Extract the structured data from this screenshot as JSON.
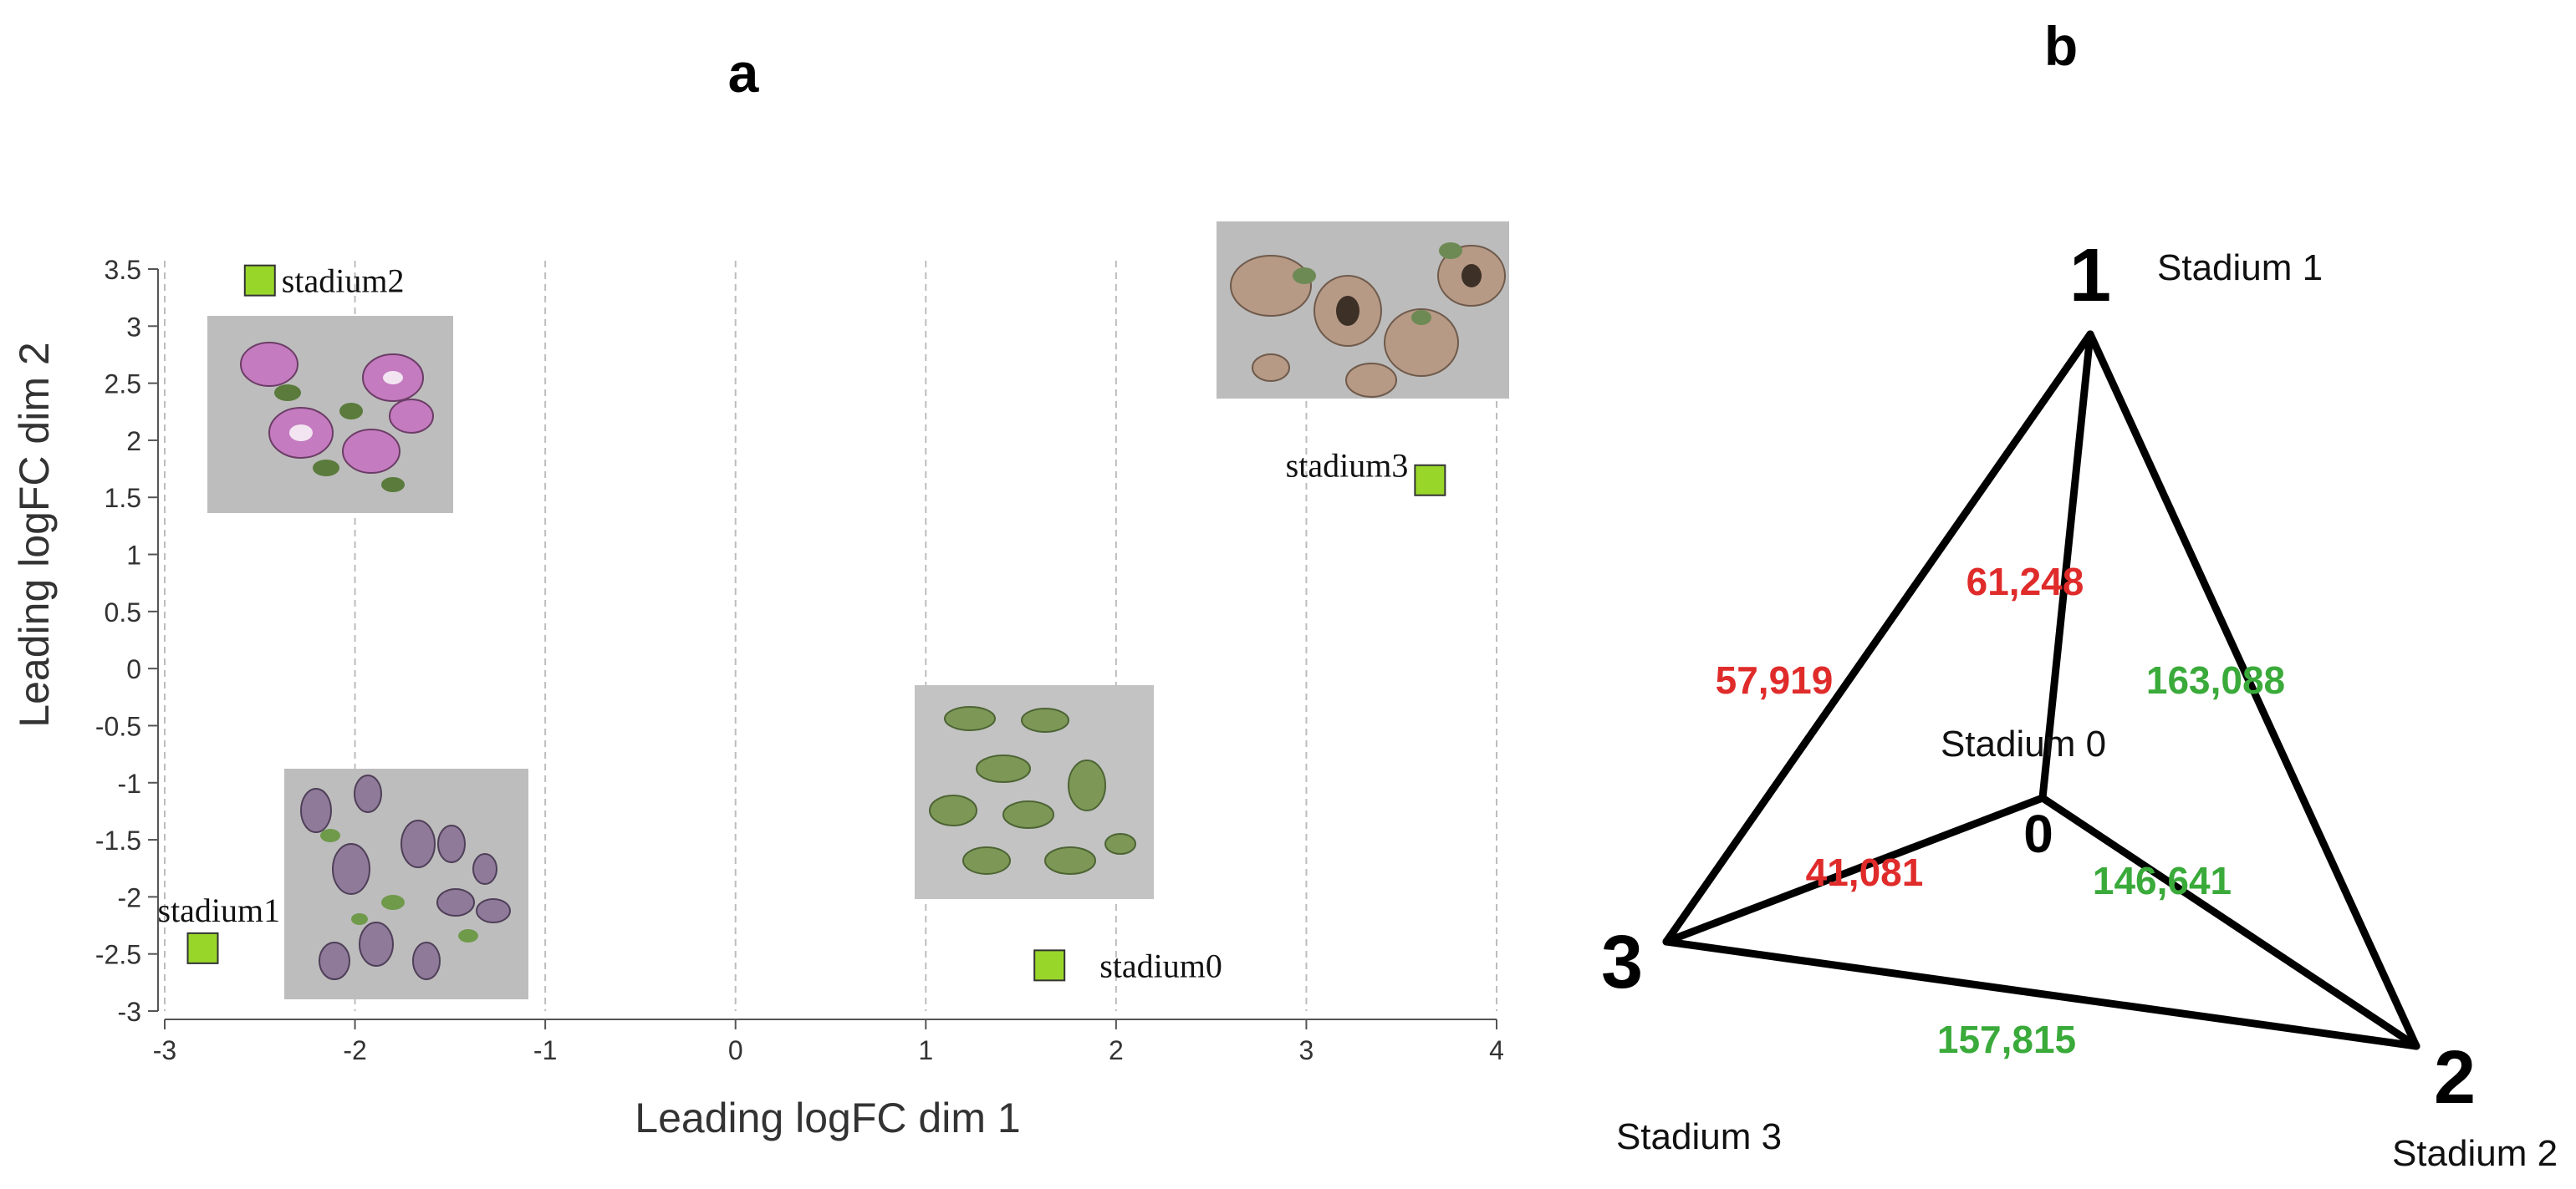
{
  "panels": {
    "a": {
      "label": "a"
    },
    "b": {
      "label": "b"
    }
  },
  "chart_data": [
    {
      "type": "scatter",
      "panel": "a",
      "xlabel": "Leading logFC dim 1",
      "ylabel": "Leading logFC dim 2",
      "xlim": [
        -3,
        4
      ],
      "ylim": [
        -3,
        3.5
      ],
      "xticks": [
        -3,
        -2,
        -1,
        0,
        1,
        2,
        3,
        4
      ],
      "yticks": [
        -3,
        -2.5,
        -2,
        -1.5,
        -1,
        -0.5,
        0,
        0.5,
        1,
        1.5,
        2,
        2.5,
        3,
        3.5
      ],
      "grid": "vertical-dashed",
      "marker_color": "#99d62a",
      "points": [
        {
          "label": "stadium2",
          "x": -2.5,
          "y": 3.4,
          "photo": "purple-flowers"
        },
        {
          "label": "stadium3",
          "x": 3.65,
          "y": 1.65,
          "photo": "dried-flowers"
        },
        {
          "label": "stadium1",
          "x": -2.8,
          "y": -2.45,
          "photo": "flower-buds"
        },
        {
          "label": "stadium0",
          "x": 1.65,
          "y": -2.6,
          "photo": "green-buds"
        }
      ]
    },
    {
      "type": "diagram",
      "panel": "b",
      "nodes": [
        {
          "id": "1",
          "name": "Stadium 1"
        },
        {
          "id": "2",
          "name": "Stadium 2"
        },
        {
          "id": "3",
          "name": "Stadium 3"
        },
        {
          "id": "0",
          "name": "Stadium 0"
        }
      ],
      "edges": [
        {
          "from": "0",
          "to": "1",
          "value": "61,248",
          "color": "#e02b2b"
        },
        {
          "from": "1",
          "to": "3",
          "value": "57,919",
          "color": "#e02b2b"
        },
        {
          "from": "1",
          "to": "2",
          "value": "163,088",
          "color": "#3aaa3a"
        },
        {
          "from": "0",
          "to": "3",
          "value": "41,081",
          "color": "#e02b2b"
        },
        {
          "from": "0",
          "to": "2",
          "value": "146,641",
          "color": "#3aaa3a"
        },
        {
          "from": "3",
          "to": "2",
          "value": "157,815",
          "color": "#3aaa3a"
        }
      ]
    }
  ]
}
